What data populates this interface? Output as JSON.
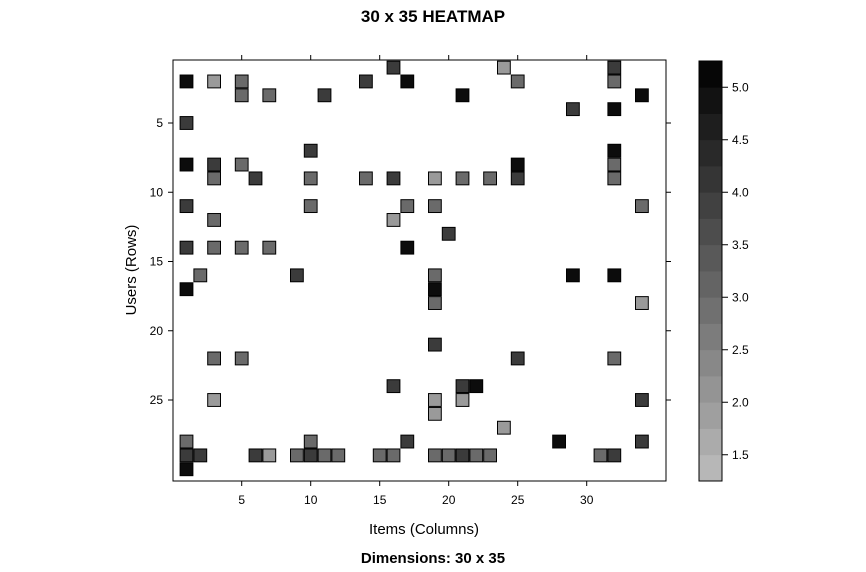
{
  "chart_data": {
    "type": "heatmap",
    "title": "30 x 35 HEATMAP",
    "subtitle": "Dimensions: 30 x 35",
    "xlabel": "Items (Columns)",
    "ylabel": "Users (Rows)",
    "n_rows": 30,
    "n_cols": 35,
    "x_ticks": [
      5,
      10,
      15,
      20,
      25,
      30
    ],
    "y_ticks": [
      5,
      10,
      15,
      20,
      25
    ],
    "y_reversed": true,
    "colorbar": {
      "min": 1.25,
      "max": 5.25,
      "ticks": [
        1.5,
        2.0,
        2.5,
        3.0,
        3.5,
        4.0,
        4.5,
        5.0
      ],
      "tick_labels": [
        "1.5",
        "2.0",
        "2.5",
        "3.0",
        "3.5",
        "4.0",
        "4.5",
        "5.0"
      ],
      "color_low": "#bdbdbd",
      "color_high": "#000000"
    },
    "cells": [
      [
        1,
        16,
        4
      ],
      [
        1,
        24,
        2
      ],
      [
        1,
        32,
        4
      ],
      [
        2,
        1,
        5
      ],
      [
        2,
        3,
        2
      ],
      [
        2,
        5,
        3
      ],
      [
        2,
        14,
        4
      ],
      [
        2,
        17,
        5
      ],
      [
        2,
        25,
        3
      ],
      [
        2,
        32,
        3
      ],
      [
        3,
        5,
        3
      ],
      [
        3,
        7,
        3
      ],
      [
        3,
        11,
        4
      ],
      [
        3,
        21,
        5
      ],
      [
        3,
        34,
        5
      ],
      [
        4,
        29,
        4
      ],
      [
        4,
        32,
        5
      ],
      [
        5,
        1,
        4
      ],
      [
        7,
        10,
        4
      ],
      [
        7,
        32,
        5
      ],
      [
        8,
        1,
        5
      ],
      [
        8,
        3,
        4
      ],
      [
        8,
        5,
        3
      ],
      [
        8,
        25,
        5
      ],
      [
        8,
        32,
        3
      ],
      [
        9,
        3,
        3
      ],
      [
        9,
        6,
        4
      ],
      [
        9,
        10,
        3
      ],
      [
        9,
        14,
        3
      ],
      [
        9,
        16,
        4
      ],
      [
        9,
        19,
        2
      ],
      [
        9,
        21,
        3
      ],
      [
        9,
        23,
        3
      ],
      [
        9,
        25,
        4
      ],
      [
        9,
        32,
        3
      ],
      [
        11,
        1,
        4
      ],
      [
        11,
        10,
        3
      ],
      [
        11,
        17,
        3
      ],
      [
        11,
        19,
        3
      ],
      [
        11,
        34,
        3
      ],
      [
        12,
        3,
        3
      ],
      [
        12,
        16,
        2
      ],
      [
        13,
        20,
        4
      ],
      [
        14,
        1,
        4
      ],
      [
        14,
        3,
        3
      ],
      [
        14,
        5,
        3
      ],
      [
        14,
        7,
        3
      ],
      [
        14,
        17,
        5
      ],
      [
        16,
        2,
        3
      ],
      [
        16,
        9,
        4
      ],
      [
        16,
        19,
        3
      ],
      [
        16,
        29,
        5
      ],
      [
        16,
        32,
        5
      ],
      [
        17,
        1,
        5
      ],
      [
        17,
        19,
        5
      ],
      [
        18,
        19,
        3
      ],
      [
        18,
        34,
        2
      ],
      [
        21,
        19,
        4
      ],
      [
        22,
        3,
        3
      ],
      [
        22,
        5,
        3
      ],
      [
        22,
        25,
        4
      ],
      [
        22,
        32,
        3
      ],
      [
        24,
        16,
        4
      ],
      [
        24,
        21,
        4
      ],
      [
        24,
        22,
        5
      ],
      [
        25,
        3,
        2
      ],
      [
        25,
        19,
        2
      ],
      [
        25,
        21,
        2
      ],
      [
        25,
        34,
        4
      ],
      [
        26,
        19,
        2
      ],
      [
        27,
        24,
        2
      ],
      [
        28,
        1,
        3
      ],
      [
        28,
        10,
        3
      ],
      [
        28,
        17,
        4
      ],
      [
        28,
        28,
        5
      ],
      [
        28,
        34,
        4
      ],
      [
        29,
        1,
        4
      ],
      [
        29,
        2,
        4
      ],
      [
        29,
        6,
        4
      ],
      [
        29,
        7,
        2
      ],
      [
        29,
        9,
        3
      ],
      [
        29,
        10,
        4
      ],
      [
        29,
        11,
        3
      ],
      [
        29,
        12,
        3
      ],
      [
        29,
        15,
        3
      ],
      [
        29,
        16,
        3
      ],
      [
        29,
        19,
        3
      ],
      [
        29,
        20,
        3
      ],
      [
        29,
        21,
        4
      ],
      [
        29,
        22,
        3
      ],
      [
        29,
        23,
        3
      ],
      [
        29,
        31,
        3
      ],
      [
        29,
        32,
        4
      ],
      [
        30,
        1,
        5
      ]
    ]
  }
}
